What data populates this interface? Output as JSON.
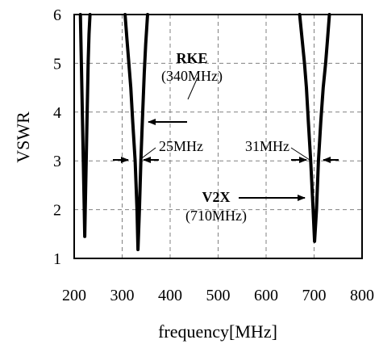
{
  "chart_data": {
    "type": "line",
    "title": "",
    "xlabel": "frequency[MHz]",
    "ylabel": "VSWR",
    "xlim": [
      200,
      800
    ],
    "ylim": [
      1,
      6
    ],
    "xticks": [
      200,
      300,
      400,
      500,
      600,
      700,
      800
    ],
    "yticks": [
      1,
      2,
      3,
      4,
      5,
      6
    ],
    "grid": true,
    "legend": "none",
    "series": [
      {
        "color": "#000000",
        "segments": [
          {
            "x": [
              213,
              215,
              217,
              219,
              220,
              221,
              222,
              223,
              225,
              227,
              229,
              231,
              233
            ],
            "y": [
              6.0,
              5.0,
              4.0,
              3.0,
              2.5,
              2.0,
              1.45,
              2.0,
              3.0,
              4.0,
              5.0,
              5.6,
              6.0
            ]
          },
          {
            "x": [
              306,
              310,
              314,
              318,
              322,
              327,
              331,
              333,
              336,
              339,
              342,
              344,
              346,
              349,
              353
            ],
            "y": [
              6.0,
              5.5,
              5.0,
              4.5,
              3.8,
              3.0,
              2.0,
              1.18,
              2.0,
              3.0,
              3.8,
              4.3,
              4.8,
              5.4,
              6.0
            ]
          },
          {
            "x": [
              670,
              675,
              680,
              684,
              688,
              693,
              698,
              701,
              705,
              709,
              714,
              719,
              724,
              728,
              732
            ],
            "y": [
              6.0,
              5.5,
              5.0,
              4.5,
              3.8,
              3.0,
              2.0,
              1.35,
              2.0,
              3.0,
              3.8,
              4.5,
              5.0,
              5.5,
              6.0
            ]
          }
        ]
      }
    ],
    "annotations": [
      {
        "label": "RKE",
        "sublabel": "(340MHz)"
      },
      {
        "label": "V2X",
        "sublabel": "(710MHz)"
      },
      {
        "label": "25MHz"
      },
      {
        "label": "31MHz"
      }
    ]
  }
}
